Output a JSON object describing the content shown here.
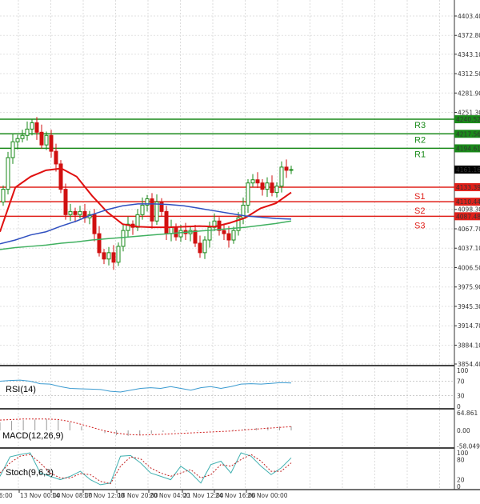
{
  "price_axis": {
    "ticks": [
      "4403.40",
      "4372.80",
      "4343.10",
      "4312.50",
      "4281.90",
      "4251.30",
      "4098.30",
      "4067.70",
      "4037.10",
      "4006.50",
      "3975.90",
      "3945.30",
      "3914.70",
      "3884.10",
      "3854.40"
    ],
    "current_price": "4161.16",
    "range": [
      3854.4,
      4403.4
    ]
  },
  "levels": [
    {
      "name": "R3",
      "value": "4240.52",
      "color": "#1a8a1a"
    },
    {
      "name": "R2",
      "value": "4217.56",
      "color": "#1a8a1a"
    },
    {
      "name": "R1",
      "value": "4194.61",
      "color": "#1a8a1a"
    },
    {
      "name": "S1",
      "value": "4133.39",
      "color": "#e0201a"
    },
    {
      "name": "S2",
      "value": "4110.44",
      "color": "#e0201a"
    },
    {
      "name": "S3",
      "value": "4087.48",
      "color": "#e0201a"
    }
  ],
  "candles": {
    "first_open": 4110,
    "closes": [
      4130,
      4180,
      4205,
      4210,
      4215,
      4225,
      4235,
      4220,
      4200,
      4215,
      4190,
      4170,
      4130,
      4090,
      4095,
      4090,
      4095,
      4085,
      4090,
      4060,
      4030,
      4020,
      4030,
      4015,
      4040,
      4065,
      4075,
      4070,
      4090,
      4105,
      4115,
      4080,
      4110,
      4095,
      4060,
      4070,
      4055,
      4065,
      4060,
      4065,
      4045,
      4030,
      4050,
      4070,
      4080,
      4065,
      4060,
      4050,
      4065,
      4085,
      4105,
      4140,
      4145,
      4140,
      4130,
      4140,
      4125,
      4135,
      4165,
      4160,
      4161.16
    ],
    "up_color": "#1a8a1a",
    "down_color": "#d01010"
  },
  "moving_averages": [
    {
      "color": "#e01010",
      "values": [
        4063,
        4133,
        4150,
        4160,
        4163,
        4150,
        4120,
        4094,
        4075,
        4071,
        4070,
        4070,
        4071,
        4072,
        4071,
        4077,
        4085,
        4100,
        4108,
        4125
      ]
    },
    {
      "color": "#3050c0",
      "values": [
        4044,
        4050,
        4058,
        4063,
        4072,
        4080,
        4090,
        4098,
        4104,
        4107,
        4107,
        4106,
        4104,
        4100,
        4096,
        4092,
        4088,
        4086,
        4084,
        4083
      ]
    },
    {
      "color": "#40b060",
      "values": [
        4035,
        4038,
        4040,
        4042,
        4045,
        4047,
        4050,
        4052,
        4054,
        4056,
        4058,
        4060,
        4062,
        4064,
        4066,
        4068,
        4070,
        4073,
        4076,
        4080
      ]
    }
  ],
  "time_axis": [
    "16:00",
    "13 Nov 00:00",
    "14 Nov 08:00",
    "17 Nov 12:00",
    "18 Nov 20:00",
    "20 Nov 04:00",
    "21 Nov 12:00",
    "24 Nov 16:00",
    "26 Nov 00:00"
  ],
  "rsi": {
    "label": "RSI(14)",
    "ticks": [
      "100",
      "70",
      "30",
      "0"
    ],
    "color": "#3a9ad0",
    "values": [
      70,
      72,
      73,
      70,
      63,
      62,
      55,
      50,
      49,
      48,
      47,
      42,
      40,
      45,
      50,
      52,
      50,
      55,
      50,
      45,
      52,
      55,
      50,
      55,
      62,
      63,
      62,
      64,
      66,
      65
    ]
  },
  "macd": {
    "label": "MACD(12,26,9)",
    "ticks": [
      "64.861",
      "0.00",
      "-58.049"
    ],
    "hist_color": "#999999",
    "signal_color": "#d02020",
    "hist": [
      30,
      35,
      38,
      40,
      42,
      40,
      30,
      15,
      0,
      -10,
      -18,
      -20,
      -18,
      -12,
      -6,
      -4,
      -3,
      -2,
      -1,
      0,
      3,
      6,
      9,
      12,
      14,
      15
    ],
    "signal": [
      38,
      40,
      42,
      42,
      42,
      40,
      33,
      22,
      10,
      -2,
      -10,
      -15,
      -17,
      -16,
      -14,
      -12,
      -10,
      -8,
      -6,
      -4,
      -2,
      2,
      5,
      8,
      11,
      14
    ]
  },
  "stoch": {
    "label": "Stoch(9,6,3)",
    "ticks": [
      "100",
      "80",
      "20",
      "0"
    ],
    "k_color": "#40b0b0",
    "d_color": "#c02020",
    "k": [
      30,
      88,
      95,
      100,
      40,
      30,
      20,
      30,
      45,
      20,
      5,
      10,
      90,
      92,
      70,
      40,
      30,
      20,
      60,
      40,
      10,
      65,
      75,
      40,
      100,
      90,
      60,
      35,
      55,
      85
    ],
    "d": [
      40,
      70,
      90,
      95,
      70,
      40,
      25,
      25,
      38,
      35,
      15,
      8,
      60,
      88,
      82,
      55,
      40,
      30,
      40,
      50,
      25,
      35,
      65,
      60,
      80,
      95,
      75,
      45,
      45,
      70
    ]
  }
}
